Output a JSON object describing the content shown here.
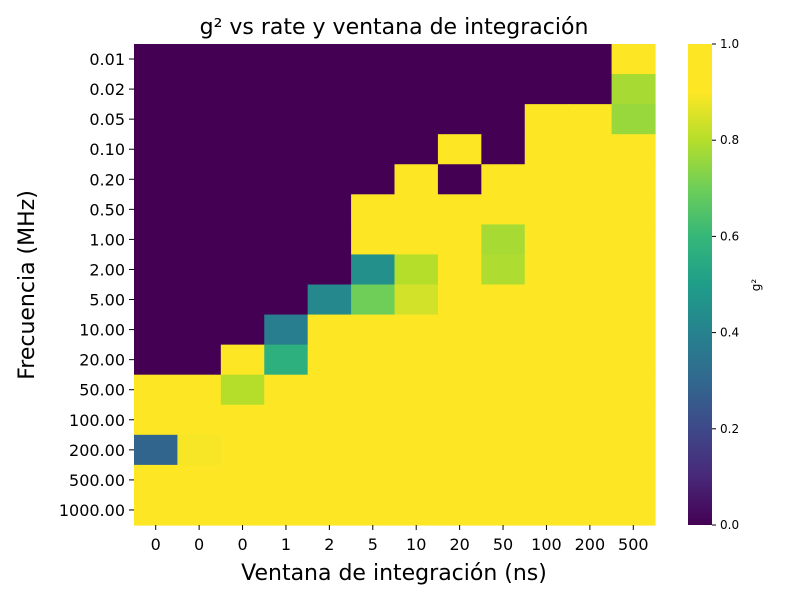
{
  "chart_data": {
    "type": "heatmap",
    "title": "g² vs rate y ventana de integración",
    "xlabel": "Ventana de integración (ns)",
    "ylabel": "Frecuencia (MHz)",
    "x_tick_labels": [
      "0",
      "0",
      "0",
      "1",
      "2",
      "5",
      "10",
      "20",
      "50",
      "100",
      "200",
      "500"
    ],
    "y_tick_labels": [
      "0.01",
      "0.02",
      "0.05",
      "0.10",
      "0.20",
      "0.50",
      "1.00",
      "2.00",
      "5.00",
      "10.00",
      "20.00",
      "50.00",
      "100.00",
      "200.00",
      "500.00",
      "1000.00"
    ],
    "values": [
      [
        0,
        0,
        0,
        0,
        0,
        0,
        0,
        0,
        0,
        0,
        0,
        1.0
      ],
      [
        0,
        0,
        0,
        0,
        0,
        0,
        0,
        0,
        0,
        0,
        0,
        0.78
      ],
      [
        0,
        0,
        0,
        0,
        0,
        0,
        0,
        0,
        0,
        1.0,
        1.0,
        0.76
      ],
      [
        0,
        0,
        0,
        0,
        0,
        0,
        0,
        1.0,
        0,
        1.0,
        1.0,
        0.97
      ],
      [
        0,
        0,
        0,
        0,
        0,
        0,
        1.0,
        0,
        1.0,
        1.0,
        0.95,
        0.91
      ],
      [
        0,
        0,
        0,
        0,
        0,
        1.0,
        1.0,
        1.0,
        1.0,
        1.0,
        1.0,
        1.0
      ],
      [
        0,
        0,
        0,
        0,
        0,
        1.0,
        1.0,
        0.9,
        0.78,
        0.98,
        1.0,
        1.0
      ],
      [
        0,
        0,
        0,
        0,
        0,
        0.45,
        0.8,
        1.0,
        0.79,
        0.93,
        0.98,
        1.0
      ],
      [
        0,
        0,
        0,
        0,
        0.42,
        0.7,
        0.84,
        0.96,
        1.0,
        1.0,
        0.98,
        1.0
      ],
      [
        0,
        0,
        0,
        0.38,
        1.0,
        0.95,
        1.0,
        1.0,
        0.99,
        1.0,
        1.0,
        1.0
      ],
      [
        0,
        0,
        0.93,
        0.57,
        0.93,
        1.0,
        1.0,
        0.98,
        1.0,
        1.0,
        1.0,
        1.0
      ],
      [
        1.0,
        0.96,
        0.8,
        0.95,
        1.0,
        1.0,
        0.98,
        0.98,
        1.0,
        1.0,
        1.0,
        1.0
      ],
      [
        1.0,
        1.0,
        1.0,
        0.9,
        0.99,
        0.98,
        1.0,
        1.0,
        1.0,
        1.0,
        1.0,
        1.0
      ],
      [
        0.29,
        0.89,
        1.0,
        0.96,
        1.0,
        1.0,
        1.0,
        1.0,
        1.0,
        1.0,
        1.0,
        1.0
      ],
      [
        1.0,
        0.92,
        1.0,
        1.0,
        1.0,
        1.0,
        1.0,
        1.0,
        1.0,
        1.0,
        1.0,
        1.0
      ],
      [
        0.93,
        1.0,
        1.0,
        1.0,
        1.0,
        1.0,
        1.0,
        1.0,
        1.0,
        1.0,
        1.0,
        1.0
      ]
    ],
    "colorbar": {
      "label": "g²",
      "range": [
        0.0,
        1.0
      ],
      "ticks": [
        "0.0",
        "0.2",
        "0.4",
        "0.6",
        "0.8",
        "1.0"
      ],
      "colormap": "viridis"
    }
  }
}
